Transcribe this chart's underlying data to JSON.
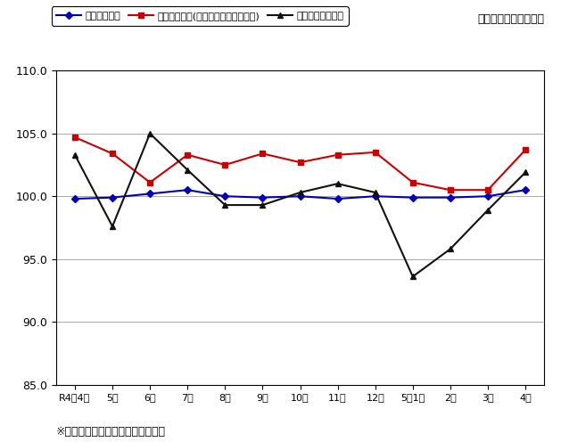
{
  "x_labels": [
    "R4年4月",
    "5月",
    "6月",
    "7月",
    "8月",
    "9月",
    "10月",
    "11月",
    "12月",
    "5年1月",
    "2月",
    "3月",
    "4月"
  ],
  "series": {
    "常用雇用指数": {
      "values": [
        99.8,
        99.9,
        100.2,
        100.5,
        100.0,
        99.9,
        100.0,
        99.8,
        100.0,
        99.9,
        99.9,
        100.0,
        100.5
      ],
      "color": "#0000BB",
      "marker": "D",
      "linewidth": 1.5,
      "markersize": 4
    },
    "名目賃金指数(きまって支給する給与)": {
      "values": [
        104.7,
        103.4,
        101.1,
        103.3,
        102.5,
        103.4,
        102.7,
        103.3,
        103.5,
        101.1,
        100.5,
        100.5,
        103.7
      ],
      "color": "#CC0000",
      "marker": "s",
      "linewidth": 1.5,
      "markersize": 4
    },
    "総実労働時間指数": {
      "values": [
        103.3,
        97.6,
        105.0,
        102.1,
        99.3,
        99.3,
        100.3,
        101.0,
        100.3,
        93.6,
        95.8,
        98.9,
        101.9
      ],
      "color": "#111111",
      "marker": "^",
      "linewidth": 1.5,
      "markersize": 5
    }
  },
  "ylim": [
    85.0,
    110.0
  ],
  "yticks": [
    85.0,
    90.0,
    95.0,
    100.0,
    105.0,
    110.0
  ],
  "subtitle": "（令和２年＝１００）",
  "footnote": "※事業所規模５人以上：調査産業計",
  "background_color": "#FFFFFF",
  "grid_color": "#888888",
  "legend_order": [
    "常用雇用指数",
    "名目賃金指数(きまって支給する給与)",
    "総実労働時間指数"
  ],
  "fig_width": 6.29,
  "fig_height": 4.96,
  "dpi": 100
}
